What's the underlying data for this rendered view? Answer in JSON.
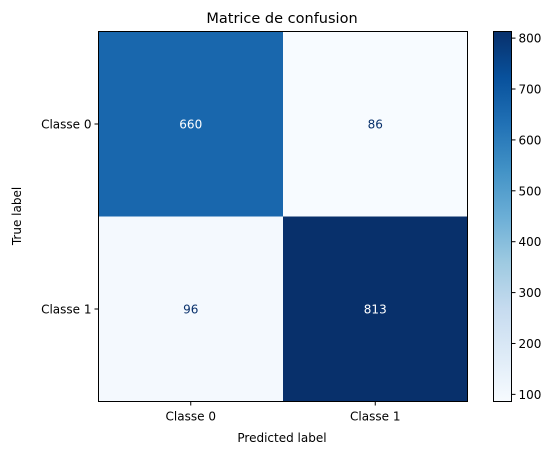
{
  "chart_data": {
    "type": "heatmap",
    "title": "Matrice de confusion",
    "xlabel": "Predicted label",
    "ylabel": "True label",
    "x_categories": [
      "Classe 0",
      "Classe 1"
    ],
    "y_categories": [
      "Classe 0",
      "Classe 1"
    ],
    "values": [
      [
        660,
        86
      ],
      [
        96,
        813
      ]
    ],
    "colormap": "Blues",
    "colorbar": {
      "min": 86,
      "max": 813,
      "ticks": [
        "100",
        "200",
        "300",
        "400",
        "500",
        "600",
        "700",
        "800"
      ]
    },
    "text_colors": {
      "dark": "#08306b",
      "light": "#ffffff"
    }
  }
}
